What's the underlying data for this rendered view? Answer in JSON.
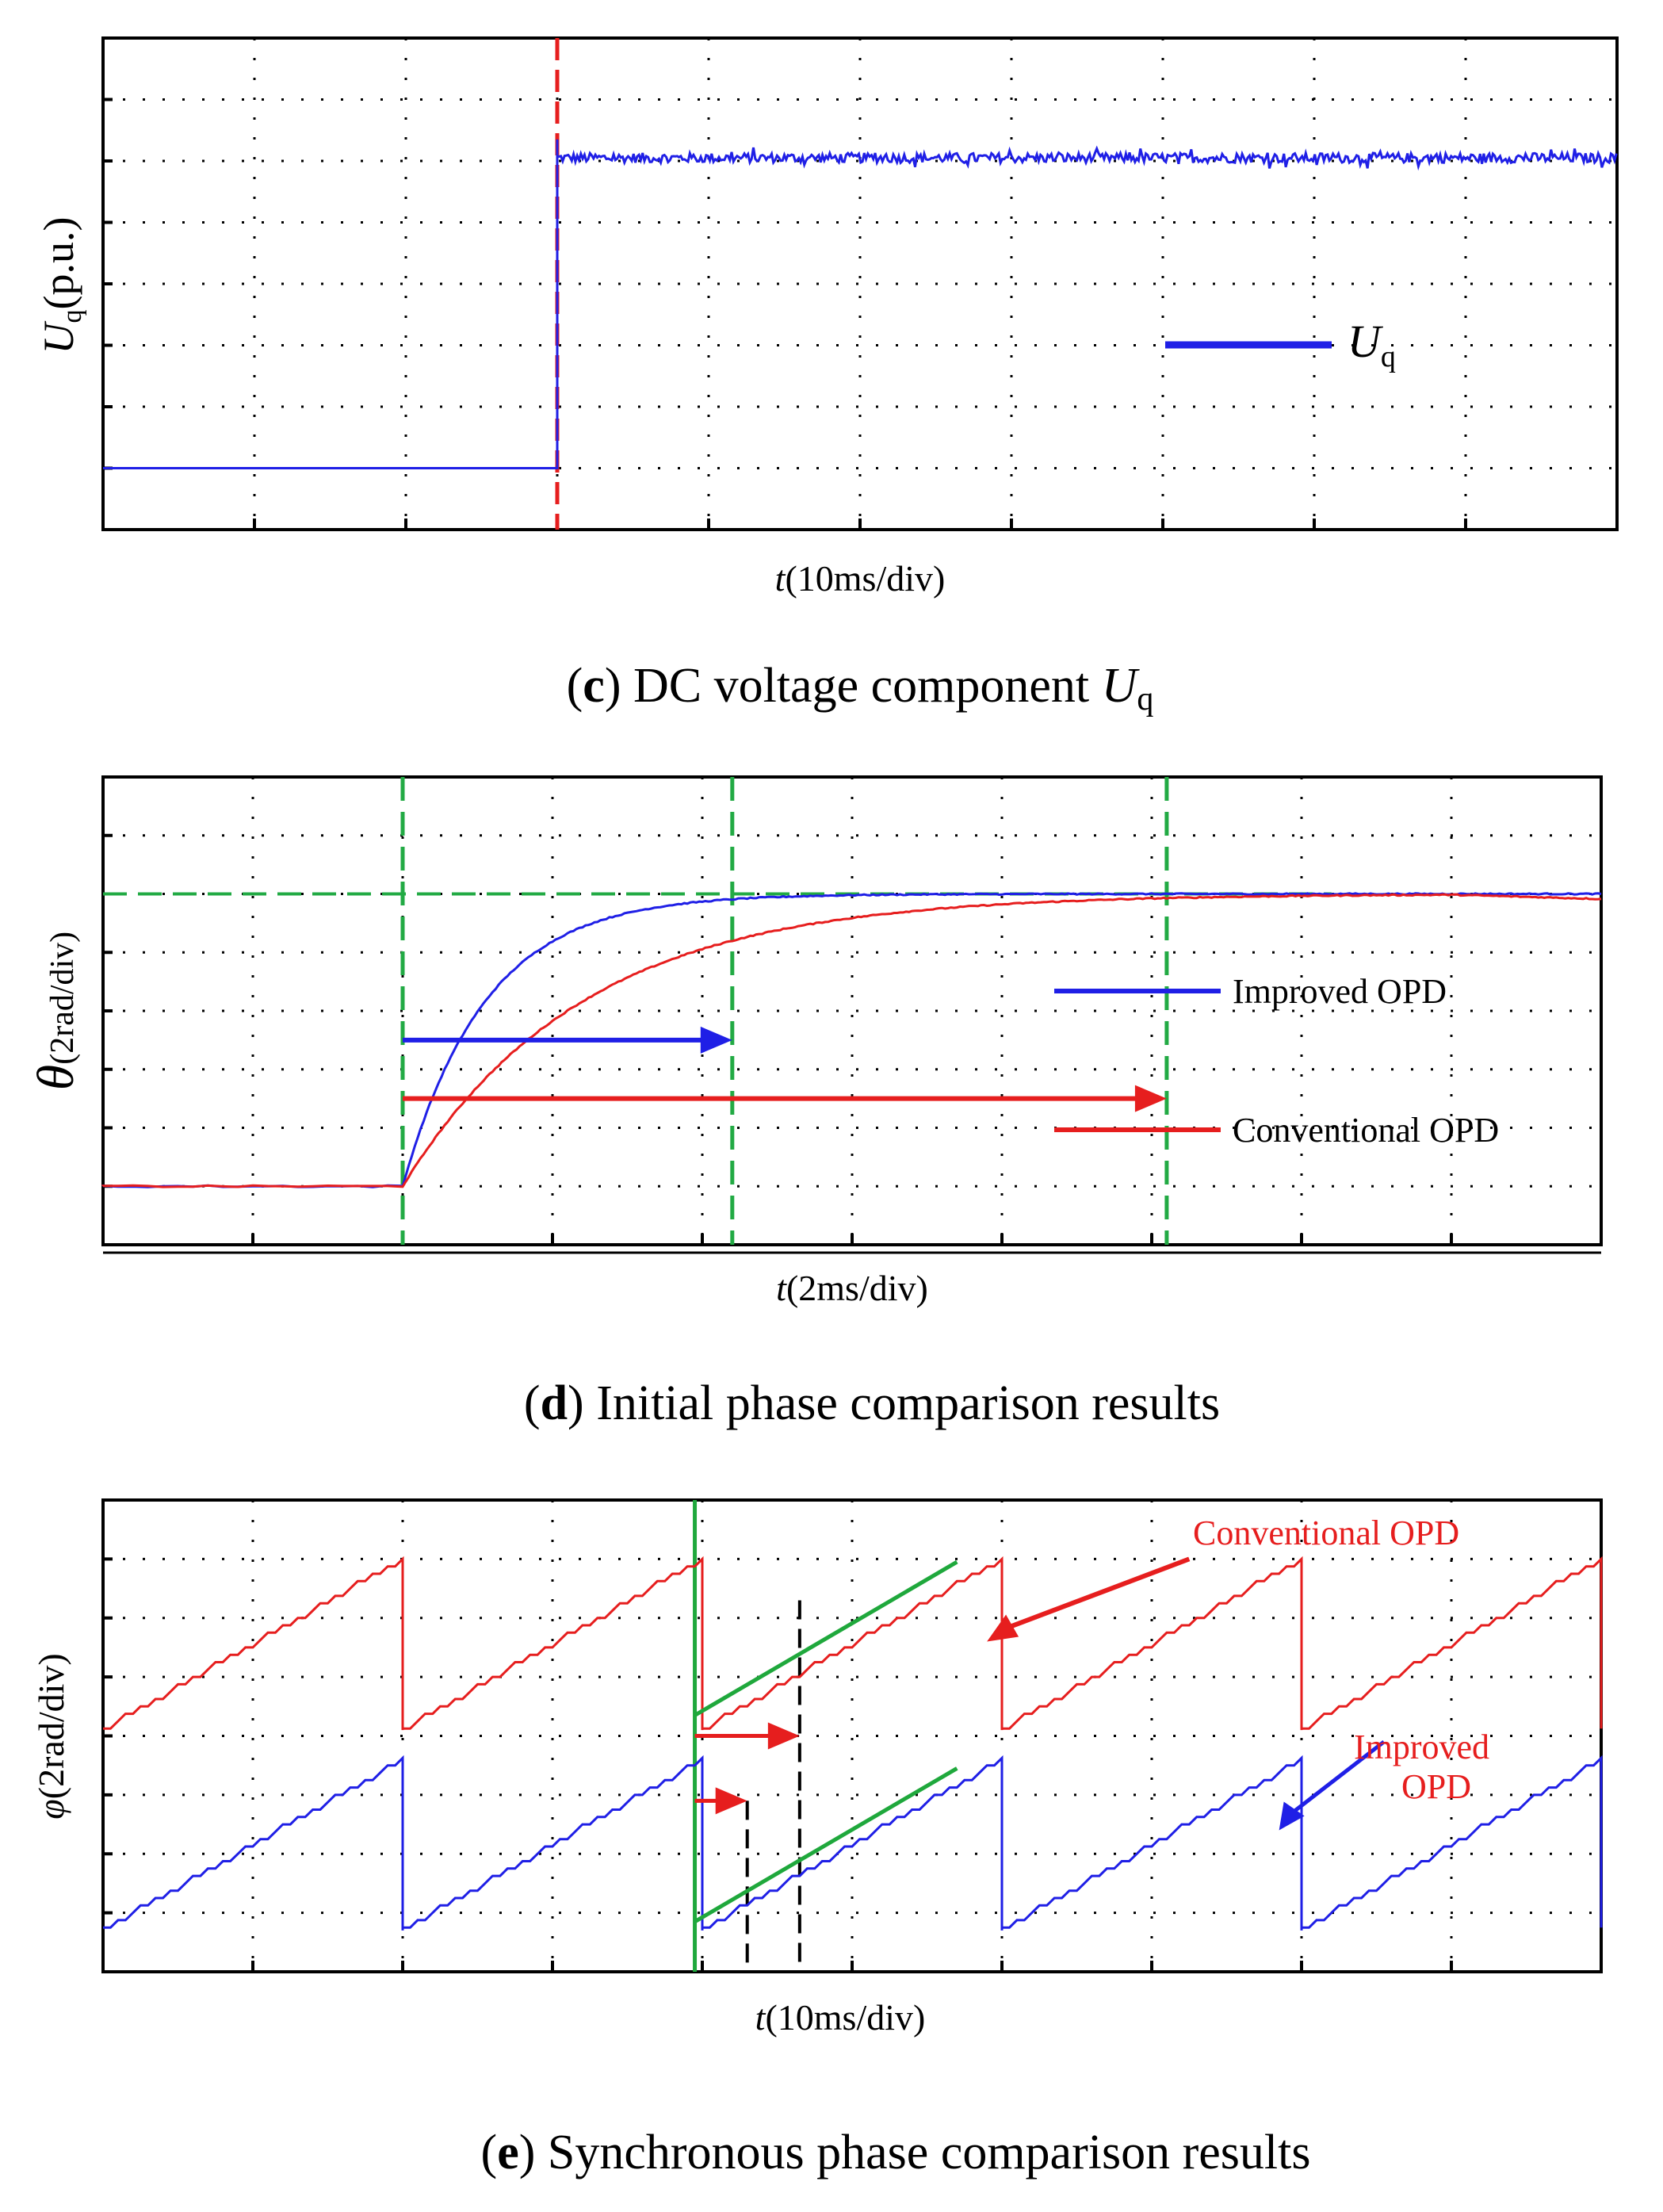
{
  "colors": {
    "blue": "#1f1fe6",
    "red": "#e61e1e",
    "green": "#1fa83c",
    "dash_green": "#22aa44",
    "grid": "#000000"
  },
  "chart_data": [
    {
      "panel": "c",
      "type": "line",
      "caption_letter": "c",
      "caption_text": " DC voltage component ",
      "caption_symbol": "U",
      "caption_sub": "q",
      "xlabel_var": "t",
      "xlabel_unit": "(10ms/div)",
      "ylabel_var": "U",
      "ylabel_sub": "q",
      "ylabel_unit": "(p.u.)",
      "legend_var": "U",
      "legend_sub": "q",
      "x_divisions": 10,
      "y_divisions": 8,
      "xlim": [
        0,
        10
      ],
      "ylim": [
        0,
        8
      ],
      "step_time_div": 3.0,
      "series": [
        {
          "name": "Uq",
          "color": "blue",
          "before_level_div": 1.0,
          "after_level_div": 6.05,
          "noise_div": 0.08
        }
      ],
      "markers": [
        {
          "type": "vline",
          "x_div": 3.0,
          "color": "red",
          "dashed": true
        }
      ]
    },
    {
      "panel": "d",
      "type": "line",
      "caption_letter": "d",
      "caption_text": " Initial phase comparison results",
      "xlabel_var": "t",
      "xlabel_unit": "(2ms/div)",
      "ylabel_var": "θ",
      "ylabel_unit": "(2rad/div)",
      "x_divisions": 10,
      "y_divisions": 8,
      "xlim": [
        0,
        10
      ],
      "ylim": [
        0,
        8
      ],
      "step_time_div": 2.0,
      "initial_level_div": 1.0,
      "final_level_div": 6.0,
      "series": [
        {
          "name": "Improved OPD",
          "color": "blue",
          "settle_time_div": 4.2,
          "tau_div": 0.55
        },
        {
          "name": "Conventional OPD",
          "color": "red",
          "settle_time_div": 7.1,
          "tau_div": 1.2
        }
      ],
      "markers": [
        {
          "type": "vline",
          "x_div": 2.0,
          "color": "dash_green"
        },
        {
          "type": "vline",
          "x_div": 4.2,
          "color": "dash_green"
        },
        {
          "type": "vline",
          "x_div": 7.1,
          "color": "dash_green"
        },
        {
          "type": "hline",
          "y_div": 6.0,
          "color": "dash_green"
        }
      ],
      "arrows": [
        {
          "from_div": 2.0,
          "to_div": 4.2,
          "y_div": 3.5,
          "color": "blue"
        },
        {
          "from_div": 2.0,
          "to_div": 7.1,
          "y_div": 2.5,
          "color": "red"
        }
      ]
    },
    {
      "panel": "e",
      "type": "line",
      "caption_letter": "e",
      "caption_text": " Synchronous phase comparison results",
      "xlabel_var": "t",
      "xlabel_unit": "(10ms/div)",
      "ylabel_var": "φ",
      "ylabel_unit": "(2rad/div)",
      "x_divisions": 10,
      "y_divisions": 8,
      "xlim": [
        0,
        10
      ],
      "ylim": [
        0,
        8
      ],
      "sawtooth_period_div": 2.0,
      "series": [
        {
          "name": "Conventional OPD",
          "color": "red",
          "low_div": 4.1,
          "high_div": 7.0,
          "first_peak_div": 2.0
        },
        {
          "name": "Improved OPD",
          "color": "blue",
          "low_div": 0.7,
          "high_div": 3.6,
          "first_peak_div": 2.0
        }
      ],
      "annotations": [
        {
          "text": "Conventional OPD",
          "color": "red"
        },
        {
          "text": "Improved",
          "color": "red"
        },
        {
          "text": "OPD",
          "color": "red"
        }
      ],
      "markers": [
        {
          "type": "vline",
          "x_div": 3.95,
          "color": "green",
          "solid": true
        },
        {
          "type": "vline",
          "x_div": 4.3,
          "color": "black",
          "dashed": true
        },
        {
          "type": "vline",
          "x_div": 4.65,
          "color": "black",
          "dashed": true
        }
      ]
    }
  ]
}
